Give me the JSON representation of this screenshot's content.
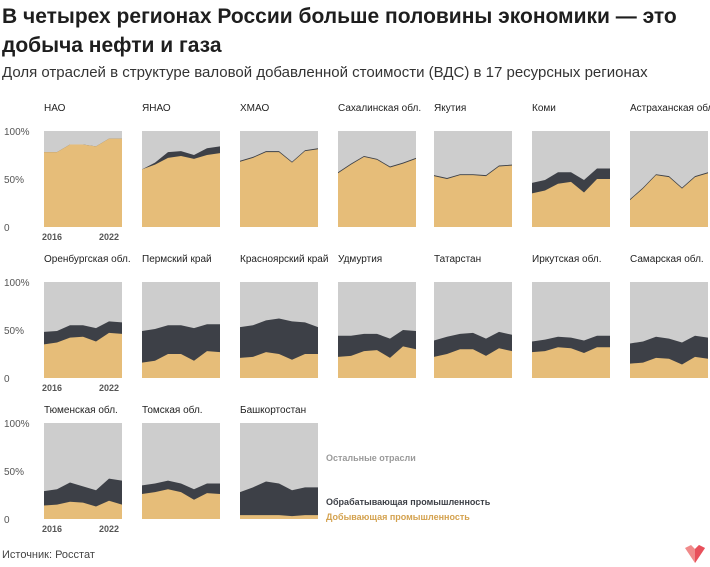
{
  "title": "В четырех регионах России больше половины экономики — это добыча нефти и газа",
  "subtitle": "Доля отраслей в структуре валовой добавленной стоимости (ВДС) в 17 ресурсных регионах",
  "source": "Источник: Росстат",
  "colors": {
    "mining": "#e6bd79",
    "manufacturing": "#3d4047",
    "other": "#cdcdcd",
    "axis_text": "#555555"
  },
  "legend": {
    "other": "Остальные отрасли",
    "manufacturing": "Обрабатывающая промышленность",
    "mining": "Добывающая промышленность"
  },
  "chart_data": {
    "type": "area",
    "stacked": true,
    "x": [
      2016,
      2017,
      2018,
      2019,
      2020,
      2021,
      2022
    ],
    "x_tick_labels": [
      "2016",
      "2022"
    ],
    "y_tick_labels": [
      "100%",
      "50%",
      "0"
    ],
    "ylim": [
      0,
      100
    ],
    "series_names": [
      "Добывающая промышленность",
      "Обрабатывающая промышленность",
      "Остальные отрасли"
    ],
    "regions": [
      {
        "name": "НАО",
        "mining": [
          78,
          78,
          86,
          86,
          84,
          92,
          92
        ],
        "manufacturing": [
          0,
          0,
          0,
          0,
          0,
          0,
          0
        ]
      },
      {
        "name": "ЯНАО",
        "mining": [
          60,
          65,
          72,
          74,
          71,
          75,
          77
        ],
        "manufacturing": [
          0,
          2,
          6,
          5,
          4,
          7,
          7
        ]
      },
      {
        "name": "ХМАО",
        "mining": [
          68,
          72,
          78,
          78,
          67,
          79,
          81
        ],
        "manufacturing": [
          1,
          1,
          1,
          1,
          1,
          1,
          1
        ]
      },
      {
        "name": "Сахалинская обл.",
        "mining": [
          56,
          65,
          73,
          70,
          62,
          66,
          71
        ],
        "manufacturing": [
          1,
          1,
          1,
          1,
          1,
          1,
          1
        ]
      },
      {
        "name": "Якутия",
        "mining": [
          53,
          50,
          54,
          54,
          53,
          63,
          64
        ],
        "manufacturing": [
          1,
          1,
          1,
          1,
          1,
          1,
          1
        ]
      },
      {
        "name": "Коми",
        "mining": [
          35,
          38,
          45,
          47,
          36,
          50,
          50
        ],
        "manufacturing": [
          11,
          11,
          12,
          10,
          13,
          11,
          11
        ]
      },
      {
        "name": "Астраханская обл.",
        "mining": [
          28,
          40,
          54,
          52,
          40,
          52,
          56
        ],
        "manufacturing": [
          1,
          1,
          1,
          1,
          1,
          1,
          1
        ]
      },
      {
        "name": "Оренбургская обл.",
        "mining": [
          35,
          37,
          42,
          43,
          38,
          47,
          46
        ],
        "manufacturing": [
          13,
          12,
          13,
          12,
          14,
          12,
          12
        ]
      },
      {
        "name": "Пермский край",
        "mining": [
          16,
          18,
          25,
          25,
          18,
          28,
          27
        ],
        "manufacturing": [
          33,
          33,
          30,
          30,
          34,
          28,
          29
        ]
      },
      {
        "name": "Красноярский край",
        "mining": [
          21,
          22,
          27,
          25,
          19,
          25,
          25
        ],
        "manufacturing": [
          32,
          33,
          33,
          37,
          40,
          33,
          28
        ]
      },
      {
        "name": "Удмуртия",
        "mining": [
          22,
          23,
          28,
          29,
          21,
          33,
          30
        ],
        "manufacturing": [
          22,
          21,
          18,
          17,
          20,
          17,
          19
        ]
      },
      {
        "name": "Татарстан",
        "mining": [
          22,
          25,
          30,
          30,
          23,
          31,
          28
        ],
        "manufacturing": [
          17,
          18,
          16,
          17,
          18,
          17,
          17
        ]
      },
      {
        "name": "Иркутская обл.",
        "mining": [
          27,
          28,
          32,
          31,
          26,
          32,
          32
        ],
        "manufacturing": [
          11,
          12,
          11,
          11,
          13,
          12,
          12
        ]
      },
      {
        "name": "Самарская обл.",
        "mining": [
          15,
          16,
          21,
          20,
          14,
          22,
          20
        ],
        "manufacturing": [
          21,
          22,
          22,
          21,
          23,
          22,
          22
        ]
      },
      {
        "name": "Тюменская обл.",
        "mining": [
          14,
          15,
          18,
          17,
          13,
          19,
          15
        ],
        "manufacturing": [
          15,
          16,
          20,
          17,
          17,
          23,
          25
        ]
      },
      {
        "name": "Томская обл.",
        "mining": [
          26,
          28,
          31,
          28,
          20,
          27,
          26
        ],
        "manufacturing": [
          9,
          9,
          9,
          9,
          11,
          10,
          11
        ]
      },
      {
        "name": "Башкортостан",
        "mining": [
          4,
          4,
          4,
          4,
          3,
          4,
          4
        ],
        "manufacturing": [
          24,
          29,
          35,
          33,
          27,
          29,
          29
        ]
      }
    ]
  }
}
